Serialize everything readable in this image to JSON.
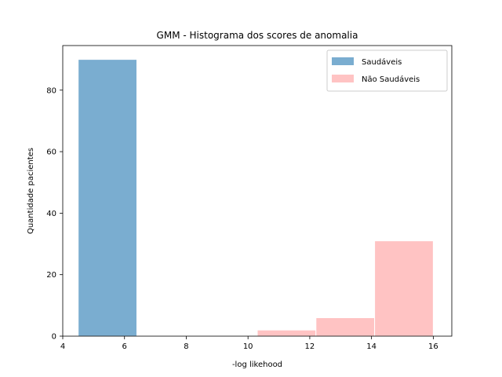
{
  "chart_data": {
    "type": "bar",
    "title": "GMM - Histograma dos scores de anomalia",
    "xlabel": "-log likehood",
    "ylabel": "Quantidade pacientes",
    "xlim": [
      4,
      16.6
    ],
    "ylim": [
      0,
      94.5
    ],
    "xticks": [
      4,
      6,
      8,
      10,
      12,
      14,
      16
    ],
    "yticks": [
      0,
      20,
      40,
      60,
      80
    ],
    "legend_position": "top-right",
    "grid": false,
    "series": [
      {
        "name": "Saudáveis",
        "color": "#7aadd0",
        "bins": [
          {
            "x0": 4.5,
            "x1": 6.4,
            "value": 90
          }
        ]
      },
      {
        "name": "Não Saudáveis",
        "color": "#ffc3c3",
        "bins": [
          {
            "x0": 10.3,
            "x1": 12.2,
            "value": 2
          },
          {
            "x0": 12.2,
            "x1": 14.1,
            "value": 6
          },
          {
            "x0": 14.1,
            "x1": 16.0,
            "value": 31
          }
        ]
      }
    ]
  }
}
